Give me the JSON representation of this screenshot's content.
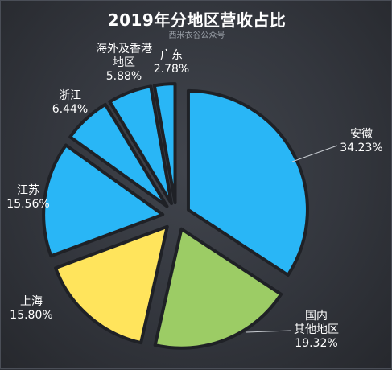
{
  "chart_data": {
    "type": "pie",
    "title": "2019年分地区营收占比",
    "subtitle": "西米衣谷公众号",
    "slices": [
      {
        "label": [
          "安徽"
        ],
        "value": 34.23,
        "value_label": "34.23%",
        "color": "#29b6f6"
      },
      {
        "label": [
          "国内",
          "其他地区"
        ],
        "value": 19.32,
        "value_label": "19.32%",
        "color": "#9ccc65"
      },
      {
        "label": [
          "上海"
        ],
        "value": 15.8,
        "value_label": "15.80%",
        "color": "#ffe45c"
      },
      {
        "label": [
          "江苏"
        ],
        "value": 15.56,
        "value_label": "15.56%",
        "color": "#29b6f6"
      },
      {
        "label": [
          "浙江"
        ],
        "value": 6.44,
        "value_label": "6.44%",
        "color": "#29b6f6"
      },
      {
        "label": [
          "海外及香港",
          "地区"
        ],
        "value": 5.88,
        "value_label": "5.88%",
        "color": "#29b6f6"
      },
      {
        "label": [
          "广东"
        ],
        "value": 2.78,
        "value_label": "2.78%",
        "color": "#29b6f6"
      }
    ]
  }
}
